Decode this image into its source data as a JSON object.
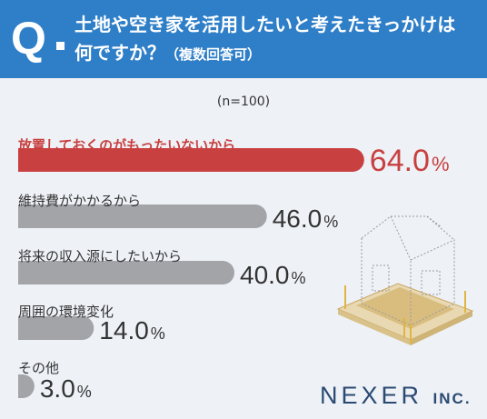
{
  "question": {
    "mark": "Q",
    "line1": "土地や空き家を活用したいと考えたきっかけは",
    "line2": "何ですか？",
    "note": "（複数回答可）"
  },
  "sample_size": "(n=100)",
  "logo": {
    "text": "NEXER",
    "suffix": "INC."
  },
  "colors": {
    "header": "#2f7fc8",
    "highlight": "#c8403f",
    "bar": "#a2a4a8",
    "text": "#333333"
  },
  "chart_data": {
    "type": "bar",
    "orientation": "horizontal",
    "categories": [
      "放置しておくのがもったいないから",
      "維持費がかかるから",
      "将来の収入源にしたいから",
      "周囲の環境変化",
      "その他"
    ],
    "values": [
      64.0,
      46.0,
      40.0,
      14.0,
      3.0
    ],
    "value_labels": [
      "64.0",
      "46.0",
      "40.0",
      "14.0",
      "3.0"
    ],
    "unit": "%",
    "highlight_index": 0,
    "title": "",
    "xlabel": "",
    "ylabel": ""
  }
}
